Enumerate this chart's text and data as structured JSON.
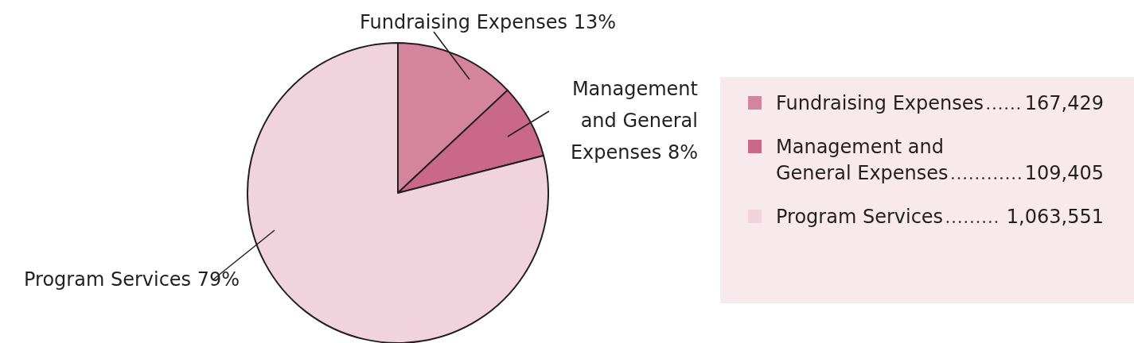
{
  "chart_data": {
    "type": "pie",
    "categories": [
      "Fundraising Expenses",
      "Management and General Expenses",
      "Program Services"
    ],
    "values": [
      13,
      8,
      79
    ],
    "colors": [
      "#d4849c",
      "#c96888",
      "#f0d3dc"
    ],
    "value_labels": [
      "13%",
      "8%",
      "79%"
    ],
    "annotations": [
      "167,429",
      "109,405",
      "1,063,551"
    ],
    "legend": "right"
  }
}
